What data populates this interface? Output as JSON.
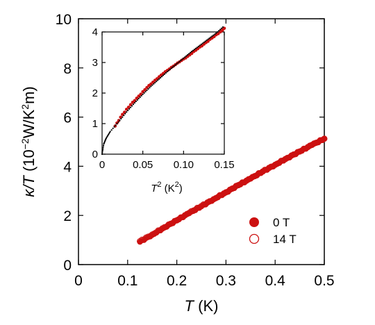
{
  "chart_data": [
    {
      "type": "scatter",
      "name_role": "main",
      "xlim": [
        0,
        0.5
      ],
      "ylim": [
        0,
        10
      ],
      "x_ticks": [
        "0",
        "0.1",
        "0.2",
        "0.3",
        "0.4",
        "0.5"
      ],
      "y_ticks": [
        "0",
        "2",
        "4",
        "6",
        "8",
        "10"
      ],
      "xlabel": {
        "symbol": "T",
        "rest": " (K)"
      },
      "ylabel": {
        "symbol": "κ/T",
        "open": " (10",
        "exp1": "−2",
        "mid": "W/K",
        "exp2": "2",
        "close": "m)"
      },
      "grid": false,
      "legend_position": "bottom-right",
      "series": [
        {
          "name": "0 T",
          "marker": "filled-circle",
          "color": "#cc1111",
          "x": [
            0.125,
            0.15,
            0.175,
            0.2,
            0.225,
            0.25,
            0.275,
            0.3,
            0.325,
            0.35,
            0.375,
            0.4,
            0.425,
            0.45,
            0.475,
            0.5
          ],
          "y": [
            0.92,
            1.2,
            1.5,
            1.8,
            2.08,
            2.36,
            2.65,
            2.93,
            3.22,
            3.5,
            3.78,
            4.05,
            4.33,
            4.6,
            4.86,
            5.12
          ]
        },
        {
          "name": "14 T",
          "marker": "open-circle",
          "color": "#cc1111",
          "x": [
            0.125,
            0.15,
            0.175,
            0.2,
            0.225,
            0.25,
            0.275,
            0.3,
            0.325,
            0.35,
            0.375,
            0.4,
            0.425,
            0.45,
            0.475,
            0.5
          ],
          "y": [
            0.95,
            1.22,
            1.52,
            1.8,
            2.1,
            2.38,
            2.66,
            2.94,
            3.23,
            3.5,
            3.79,
            4.06,
            4.34,
            4.6,
            4.87,
            5.12
          ]
        }
      ]
    },
    {
      "type": "scatter",
      "name_role": "inset",
      "xlim": [
        0,
        0.15
      ],
      "ylim": [
        0,
        4
      ],
      "x_ticks": [
        "0",
        "0.05",
        "0.10",
        "0.15"
      ],
      "y_ticks": [
        "0",
        "1",
        "2",
        "3",
        "4"
      ],
      "xlabel": {
        "symbol": "T",
        "exp": "2",
        "open": " (K",
        "exp2": "2",
        "close": ")"
      },
      "ylabel": "",
      "grid": false,
      "series": [
        {
          "marker": "filled-circle",
          "color": "#cc1111",
          "x": [
            0.016,
            0.025,
            0.035,
            0.045,
            0.055,
            0.065,
            0.075,
            0.085,
            0.095,
            0.105,
            0.115,
            0.125,
            0.135,
            0.145,
            0.15
          ],
          "y": [
            0.92,
            1.3,
            1.62,
            1.9,
            2.18,
            2.42,
            2.64,
            2.84,
            3.02,
            3.2,
            3.4,
            3.6,
            3.8,
            4.0,
            4.12
          ]
        },
        {
          "marker": "dotted-fit",
          "color": "#000000",
          "x": [
            0.0,
            0.002,
            0.005,
            0.01,
            0.02,
            0.03,
            0.04,
            0.05,
            0.06,
            0.07,
            0.08,
            0.09,
            0.1,
            0.11,
            0.12,
            0.13,
            0.14,
            0.15
          ],
          "y": [
            0.0,
            0.33,
            0.52,
            0.74,
            1.05,
            1.38,
            1.68,
            1.96,
            2.22,
            2.46,
            2.7,
            2.92,
            3.14,
            3.36,
            3.56,
            3.76,
            3.96,
            4.2
          ]
        }
      ]
    }
  ]
}
